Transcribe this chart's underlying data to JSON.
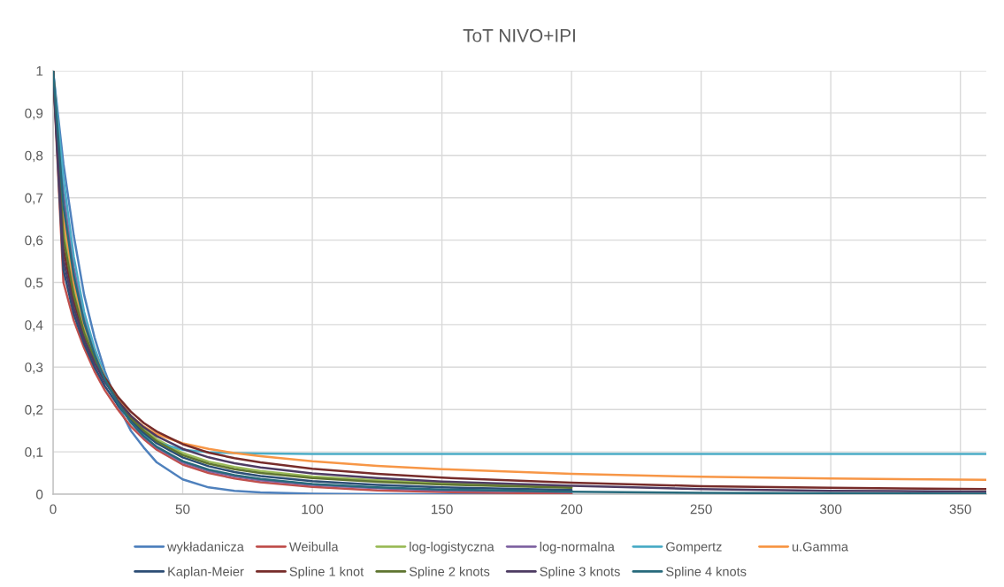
{
  "chart_data": {
    "type": "line",
    "title": "ToT NIVO+IPI",
    "x": [
      0,
      4,
      8,
      12,
      16,
      20,
      25,
      30,
      35,
      40,
      50,
      60,
      70,
      80,
      100,
      125,
      150,
      200,
      250,
      300,
      360
    ],
    "xlim": [
      0,
      360
    ],
    "xticks": [
      0,
      50,
      100,
      150,
      200,
      250,
      300,
      350
    ],
    "ylim": [
      0,
      1
    ],
    "yticks": [
      0,
      {
        "value": 0.1,
        "label": "0,1"
      },
      {
        "value": 0.2,
        "label": "0,2"
      },
      {
        "value": 0.3,
        "label": "0,3"
      },
      {
        "value": 0.4,
        "label": "0,4"
      },
      {
        "value": 0.5,
        "label": "0,5"
      },
      {
        "value": 0.6,
        "label": "0,6"
      },
      {
        "value": 0.7,
        "label": "0,7"
      },
      {
        "value": 0.8,
        "label": "0,8"
      },
      {
        "value": 0.9,
        "label": "0,9"
      },
      1
    ],
    "grid": true,
    "legend": "bottom",
    "line_style": "solid",
    "series": [
      {
        "name": "wykładanicza",
        "color": "#4f81bd",
        "values": [
          1,
          0.78,
          0.61,
          0.47,
          0.37,
          0.29,
          0.21,
          0.15,
          0.11,
          0.075,
          0.035,
          0.016,
          0.008,
          0.004,
          0.001,
          0,
          0,
          0,
          null,
          null,
          null
        ]
      },
      {
        "name": "Weibulla",
        "color": "#c0504d",
        "values": [
          1,
          0.5,
          0.41,
          0.345,
          0.29,
          0.245,
          0.2,
          0.16,
          0.13,
          0.105,
          0.07,
          0.05,
          0.037,
          0.028,
          0.017,
          0.009,
          0.005,
          0.001,
          null,
          null,
          null
        ]
      },
      {
        "name": "log-logistyczna",
        "color": "#9bbb59",
        "values": [
          1,
          0.63,
          0.485,
          0.39,
          0.325,
          0.275,
          0.225,
          0.185,
          0.155,
          0.13,
          0.097,
          0.077,
          0.064,
          0.055,
          0.042,
          0.033,
          0.026,
          0.018,
          null,
          null,
          null
        ]
      },
      {
        "name": "log-normalna",
        "color": "#8064a2",
        "values": [
          1,
          0.71,
          0.535,
          0.415,
          0.335,
          0.275,
          0.215,
          0.17,
          0.135,
          0.11,
          0.075,
          0.055,
          0.042,
          0.033,
          0.022,
          0.014,
          0.009,
          0.005,
          null,
          null,
          null
        ]
      },
      {
        "name": "Gompertz",
        "color": "#4bacc6",
        "values": [
          1,
          0.745,
          0.56,
          0.43,
          0.345,
          0.28,
          0.215,
          0.17,
          0.14,
          0.122,
          0.105,
          0.099,
          0.097,
          0.096,
          0.095,
          0.095,
          0.095,
          0.095,
          0.095,
          0.095,
          0.095
        ]
      },
      {
        "name": "u.Gamma",
        "color": "#f79646",
        "values": [
          1,
          0.655,
          0.5,
          0.4,
          0.33,
          0.275,
          0.225,
          0.185,
          0.16,
          0.142,
          0.12,
          0.107,
          0.097,
          0.09,
          0.078,
          0.067,
          0.059,
          0.048,
          0.041,
          0.037,
          0.034
        ]
      },
      {
        "name": "Kaplan-Meier",
        "color": "#2c4d75",
        "values": [
          1,
          0.53,
          0.425,
          0.355,
          0.3,
          0.255,
          0.21,
          0.175,
          0.145,
          0.12,
          0.087,
          0.066,
          0.052,
          0.043,
          0.031,
          0.022,
          0.016,
          0.01,
          null,
          null,
          null
        ]
      },
      {
        "name": "Spline 1 knot",
        "color": "#772c2a",
        "values": [
          1,
          0.58,
          0.455,
          0.375,
          0.32,
          0.275,
          0.23,
          0.195,
          0.168,
          0.148,
          0.118,
          0.098,
          0.085,
          0.075,
          0.06,
          0.048,
          0.039,
          0.027,
          0.019,
          0.015,
          0.012
        ]
      },
      {
        "name": "Spline 2 knots",
        "color": "#5f7530",
        "values": [
          1,
          0.605,
          0.47,
          0.38,
          0.32,
          0.27,
          0.22,
          0.18,
          0.15,
          0.125,
          0.092,
          0.072,
          0.059,
          0.05,
          0.038,
          0.029,
          0.023,
          0.015,
          null,
          null,
          null
        ]
      },
      {
        "name": "Spline 3 knots",
        "color": "#4d3b62",
        "values": [
          1,
          0.555,
          0.44,
          0.365,
          0.31,
          0.265,
          0.22,
          0.185,
          0.158,
          0.137,
          0.107,
          0.087,
          0.073,
          0.063,
          0.049,
          0.038,
          0.03,
          0.02,
          0.012,
          0.008,
          0.006
        ]
      },
      {
        "name": "Spline 4 knots",
        "color": "#276a7c",
        "values": [
          1,
          0.68,
          0.515,
          0.405,
          0.33,
          0.27,
          0.215,
          0.17,
          0.137,
          0.112,
          0.078,
          0.058,
          0.045,
          0.036,
          0.024,
          0.016,
          0.011,
          0.006,
          0.003,
          0.002,
          0.001
        ]
      }
    ]
  }
}
